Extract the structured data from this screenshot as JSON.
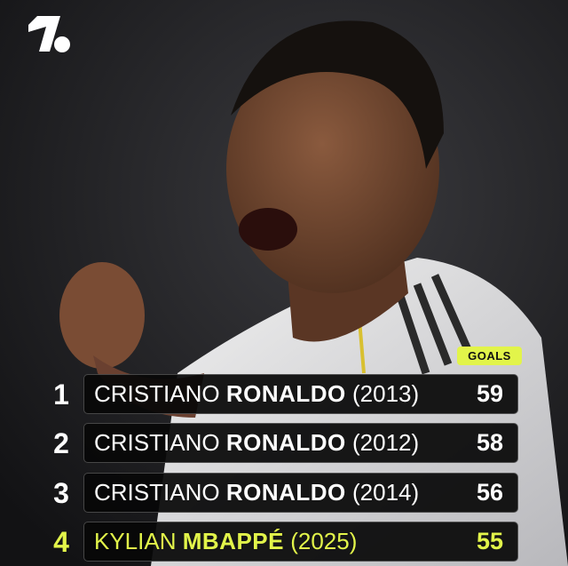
{
  "brand": {
    "logo": "onefootball-logo"
  },
  "colors": {
    "accent": "#e2f44a",
    "row_bg": "#080808",
    "text": "#ffffff"
  },
  "header_label": "GOALS",
  "rows": [
    {
      "rank": "1",
      "first": "CRISTIANO",
      "last": "RONALDO",
      "year": "(2013)",
      "goals": "59",
      "highlight": false
    },
    {
      "rank": "2",
      "first": "CRISTIANO",
      "last": "RONALDO",
      "year": "(2012)",
      "goals": "58",
      "highlight": false
    },
    {
      "rank": "3",
      "first": "CRISTIANO",
      "last": "RONALDO",
      "year": "(2014)",
      "goals": "56",
      "highlight": false
    },
    {
      "rank": "4",
      "first": "KYLIAN",
      "last": "MBAPPÉ",
      "year": "(2025)",
      "goals": "55",
      "highlight": true
    }
  ]
}
